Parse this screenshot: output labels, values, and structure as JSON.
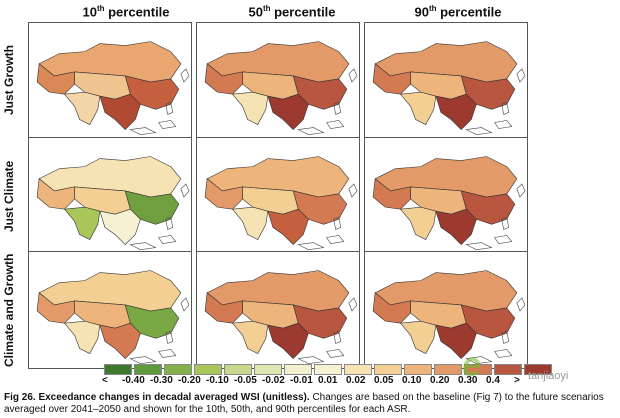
{
  "columns": [
    {
      "base": "10",
      "sup": "th",
      "rest": " percentile"
    },
    {
      "base": "50",
      "sup": "th",
      "rest": " percentile"
    },
    {
      "base": "90",
      "sup": "th",
      "rest": " percentile"
    }
  ],
  "rows": [
    "Just Growth",
    "Just Climate",
    "Climate and Growth"
  ],
  "legend": {
    "labels": [
      "<",
      "-0.40",
      "-0.30",
      "-0.20",
      "-0.10",
      "-0.05",
      "-0.02",
      "-0.01",
      "0.01",
      "0.02",
      "0.05",
      "0.10",
      "0.20",
      "0.30",
      "0.4",
      ">"
    ],
    "colors": [
      "#3d7a2e",
      "#5f9a3a",
      "#83b04a",
      "#a6c65c",
      "#c6d98a",
      "#dfe7b0",
      "#f2f0cf",
      "#f7f1d4",
      "#f6e3b4",
      "#f3cf94",
      "#edb47b",
      "#e39a68",
      "#d37a52",
      "#b95640",
      "#9c3a2f"
    ]
  },
  "caption": {
    "bold": "Fig 26. Exceedance changes in decadal averaged WSI (unitless).",
    "text": " Changes are based on the baseline (Fig 7) to the future scenarios averaged over 2041–2050 and shown for the 10th, 50th, and 90th percentiles for each ASR."
  },
  "watermark": "e",
  "watermark2": "tanjiaoyi",
  "region_palettes": [
    [
      "#e9a66f",
      "#c4603d",
      "#f0c48e",
      "#d98856",
      "#f3d6a8",
      "#b04a33"
    ],
    [
      "#e39a68",
      "#b95640",
      "#edb47b",
      "#d37a52",
      "#f6e3b4",
      "#9c3a2f"
    ],
    [
      "#e39a68",
      "#b95640",
      "#edb47b",
      "#d37a52",
      "#f3cf94",
      "#9c3a2f"
    ],
    [
      "#f6e3b4",
      "#6f9f3f",
      "#f3cf94",
      "#edb47b",
      "#a9c65a",
      "#f7f1d4"
    ],
    [
      "#edb47b",
      "#d37a52",
      "#f3cf94",
      "#e39a68",
      "#f6e3b4",
      "#c4603d"
    ],
    [
      "#e39a68",
      "#b95640",
      "#edb47b",
      "#d37a52",
      "#f3cf94",
      "#9c3a2f"
    ],
    [
      "#f3cf94",
      "#7aa845",
      "#edb47b",
      "#e39a68",
      "#f6e3b4",
      "#d37a52"
    ],
    [
      "#e39a68",
      "#b95640",
      "#edb47b",
      "#d37a52",
      "#f3cf94",
      "#9c3a2f"
    ],
    [
      "#e39a68",
      "#b95640",
      "#edb47b",
      "#d37a52",
      "#f3cf94",
      "#9c3a2f"
    ]
  ]
}
